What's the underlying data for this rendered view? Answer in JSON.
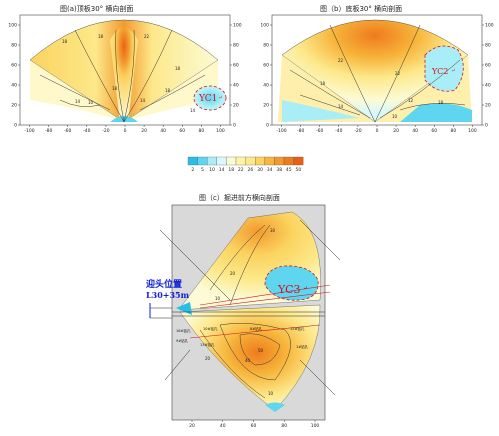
{
  "titles": {
    "a": "图(a)顶板30° 横向剖面",
    "b": "图（b）底板30° 横向剖面",
    "c": "图（c）掘进前方横向剖面"
  },
  "colors": {
    "c2": "#27bfe6",
    "c5": "#5fd6ef",
    "c10": "#a9eef6",
    "c14": "#d9f8f9",
    "c18": "#fcfbd6",
    "c22": "#fdf4a6",
    "c26": "#fde88a",
    "c30": "#fbd35f",
    "c34": "#f7b53b",
    "c38": "#f29a2e",
    "c45": "#ee7b1e",
    "c50": "#e85e14",
    "zone": "#d01020",
    "annotation": "#1020d8",
    "grey": "#d9d9d9"
  },
  "zones": {
    "yc1": "YC1",
    "yc2": "YC2",
    "yc3": "YC3",
    "mark": "↵"
  },
  "annotation": {
    "line1": "迎头位置",
    "line2": "L30+35m"
  },
  "labels_c": {
    "s1": "16#钻孔",
    "s2": "10#钻孔",
    "s3": "8#钻孔",
    "s4": "15#钻孔",
    "s5": "9#钻孔",
    "s6": "13#钻孔",
    "s7": "1#钻孔"
  },
  "chart_data": [
    {
      "type": "heatmap",
      "title": "图(a)顶板30° 横向剖面",
      "xlim": [
        -110,
        110
      ],
      "ylim": [
        0,
        110
      ],
      "x_ticks": [
        -100,
        -80,
        -60,
        -40,
        -20,
        0,
        20,
        40,
        60,
        80,
        100
      ],
      "y_ticks": [
        0,
        20,
        40,
        60,
        80,
        100
      ],
      "contour_labels": [
        "18",
        "18",
        "18",
        "14",
        "10",
        "18",
        "22",
        "14",
        "18",
        "14"
      ],
      "zones": [
        "YC1"
      ]
    },
    {
      "type": "heatmap",
      "title": "图（b）底板30° 横向剖面",
      "xlim": [
        -110,
        110
      ],
      "ylim": [
        0,
        110
      ],
      "x_ticks": [
        -100,
        -80,
        -60,
        -40,
        -20,
        0,
        20,
        40,
        60,
        80,
        100
      ],
      "y_ticks": [
        0,
        20,
        40,
        60,
        80,
        100
      ],
      "contour_labels": [
        "22",
        "18",
        "22",
        "12",
        "14",
        "18",
        "10"
      ],
      "zones": [
        "YC2"
      ]
    },
    {
      "type": "heatmap",
      "title": "图（c）掘进前方横向剖面",
      "x_ticks": [
        20,
        40,
        60,
        80,
        100
      ],
      "y_ticks": [],
      "contour_labels": [
        "30",
        "50",
        "40",
        "20",
        "20",
        "10",
        "10"
      ],
      "zones": [
        "YC3"
      ]
    },
    {
      "type": "colorbar",
      "ticks": [
        "2",
        "5",
        "10",
        "14",
        "18",
        "22",
        "26",
        "30",
        "34",
        "38",
        "45",
        "50"
      ]
    }
  ]
}
